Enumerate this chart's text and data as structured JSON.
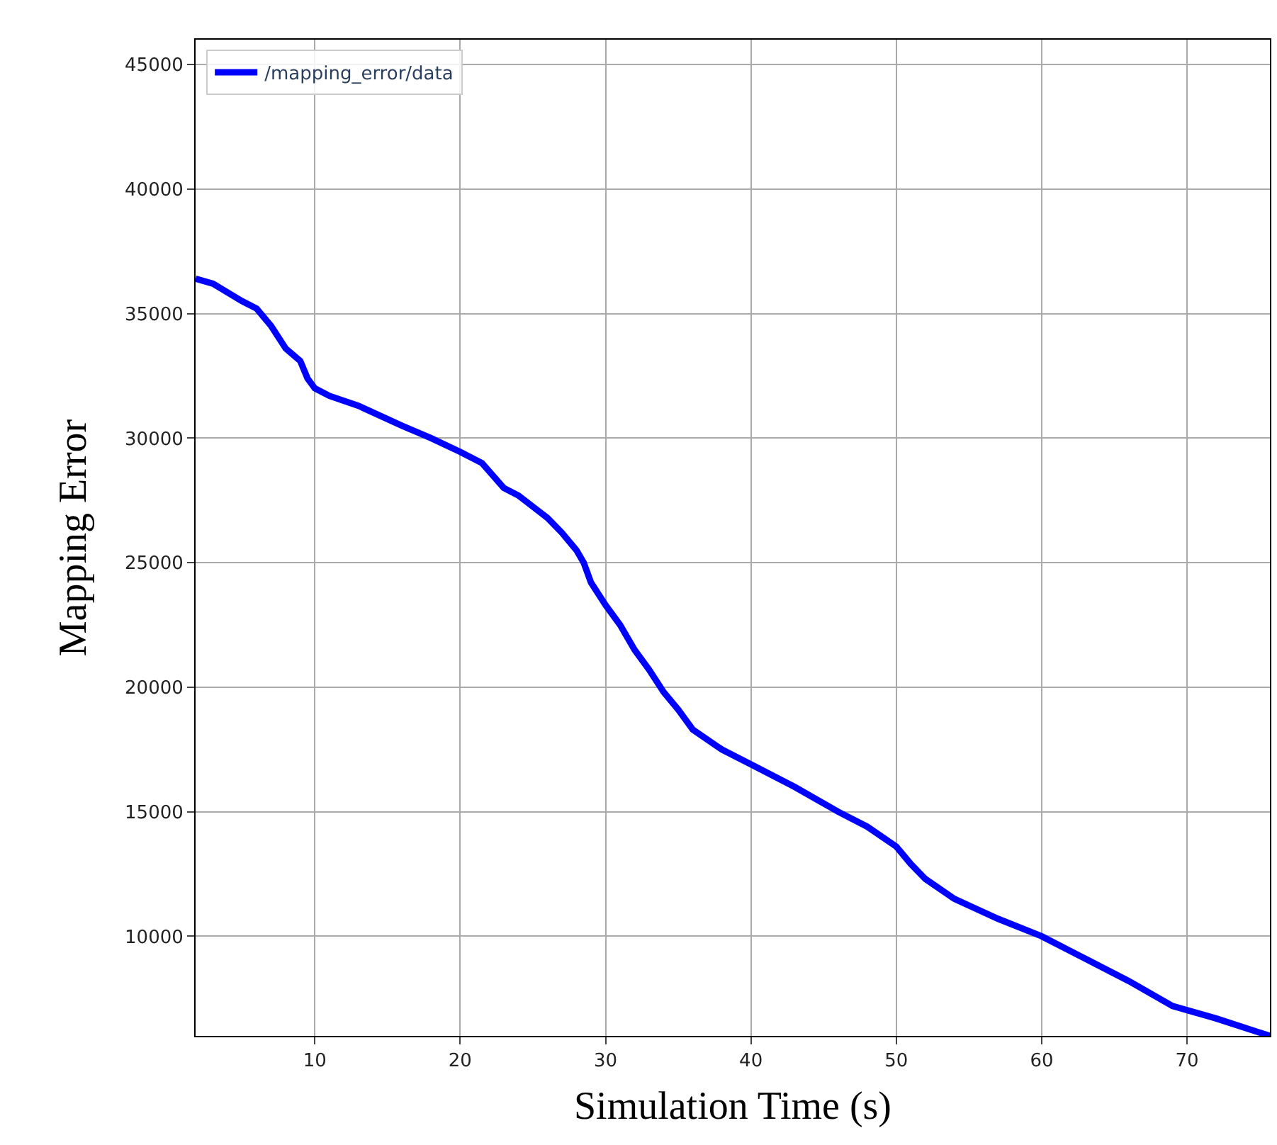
{
  "chart_data": {
    "type": "line",
    "xlabel": "Simulation Time (s)",
    "ylabel": "Mapping Error",
    "series": [
      {
        "name": "/mapping_error/data",
        "color": "#0000ff",
        "x": [
          1.8,
          3,
          5,
          6,
          7,
          8,
          9,
          9.5,
          10,
          11,
          13,
          16,
          18,
          20,
          21.5,
          23,
          24,
          26,
          27,
          28,
          28.5,
          29,
          30,
          31,
          32,
          33,
          34,
          35,
          36,
          38,
          40,
          43,
          46,
          48,
          50,
          51,
          52,
          54,
          57,
          60,
          63,
          66,
          69,
          72,
          75.7
        ],
        "values": [
          36400,
          36200,
          35500,
          35200,
          34500,
          33600,
          33100,
          32400,
          32000,
          31700,
          31300,
          30500,
          30000,
          29450,
          29000,
          28000,
          27700,
          26800,
          26200,
          25500,
          25000,
          24200,
          23300,
          22500,
          21500,
          20700,
          19800,
          19100,
          18300,
          17500,
          16900,
          16000,
          15000,
          14400,
          13600,
          12900,
          12300,
          11500,
          10700,
          10000,
          9100,
          8200,
          7200,
          6700,
          6000
        ]
      }
    ],
    "xlim": [
      1.8,
      75.7
    ],
    "xticks": [
      10,
      20,
      30,
      40,
      50,
      60,
      70
    ],
    "ylim": [
      6000,
      46000
    ],
    "yticks": [
      10000,
      15000,
      20000,
      25000,
      30000,
      35000,
      40000,
      45000
    ],
    "grid": true,
    "legend": "top left",
    "marker": "none",
    "line_style": "solid"
  }
}
